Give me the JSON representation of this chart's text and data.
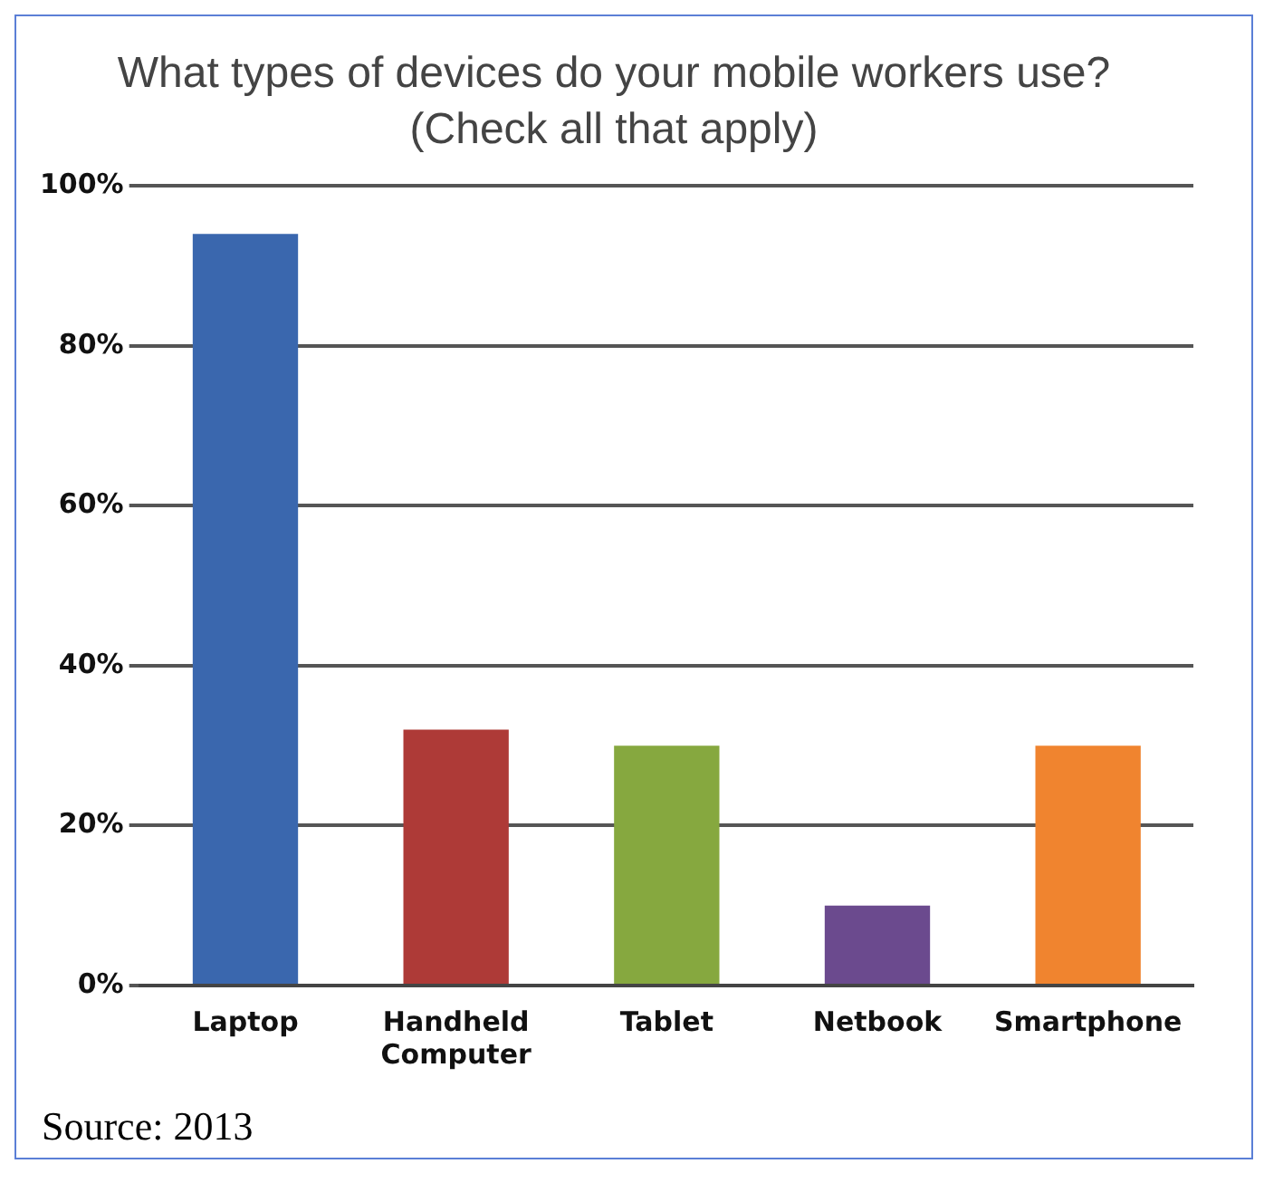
{
  "chart_data": {
    "type": "bar",
    "title": "What types of devices do your mobile workers use?",
    "subtitle": "(Check all that apply)",
    "categories": [
      "Laptop",
      "Handheld Computer",
      "Tablet",
      "Netbook",
      "Smartphone"
    ],
    "values": [
      94,
      32,
      30,
      10,
      30
    ],
    "colors": [
      "#3a67ae",
      "#ae3a37",
      "#86a83f",
      "#6b4a8e",
      "#f0842f"
    ],
    "ylim": [
      0,
      100
    ],
    "yticks": [
      {
        "value": 0,
        "label": "0%"
      },
      {
        "value": 20,
        "label": "20%"
      },
      {
        "value": 40,
        "label": "40%"
      },
      {
        "value": 60,
        "label": "60%"
      },
      {
        "value": 80,
        "label": "80%"
      },
      {
        "value": 100,
        "label": "100%"
      }
    ],
    "grid": "y",
    "legend": false,
    "annotations": [
      "Source: 2013"
    ]
  }
}
